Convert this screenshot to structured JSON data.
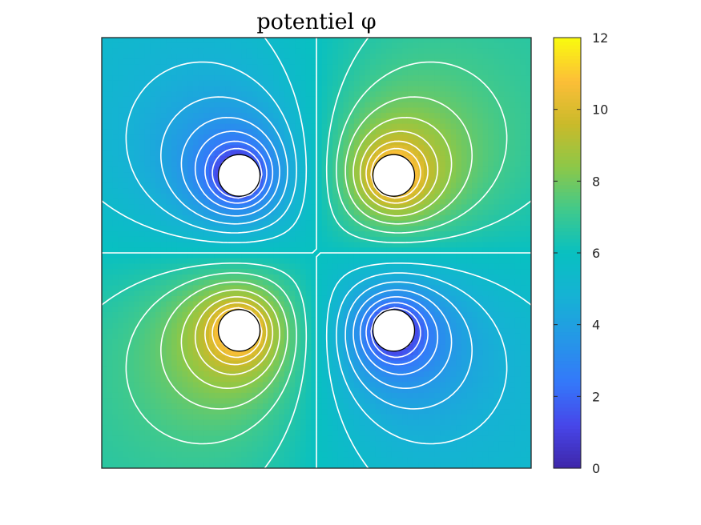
{
  "chart_data": {
    "type": "heatmap",
    "title": "potentiel φ",
    "xlabel": "",
    "ylabel": "",
    "colorbar": {
      "range": [
        0,
        12
      ],
      "ticks": [
        0,
        2,
        4,
        6,
        8,
        10,
        12
      ],
      "tick_labels": [
        "0",
        "2",
        "4",
        "6",
        "8",
        "10",
        "12"
      ],
      "colormap": "parula"
    },
    "domain": {
      "x": [
        -1,
        1
      ],
      "y": [
        -1,
        1
      ]
    },
    "background_value": 6,
    "electrodes": [
      {
        "x": -0.36,
        "y": 0.36,
        "value": 0
      },
      {
        "x": 0.36,
        "y": 0.36,
        "value": 12
      },
      {
        "x": -0.36,
        "y": -0.36,
        "value": 12
      },
      {
        "x": 0.36,
        "y": -0.36,
        "value": 0
      }
    ],
    "electrode_radius": 0.1,
    "contour_line_color": "#ffffff",
    "electrode_edge_color": "#000000",
    "grid": false,
    "axis_ticks_visible": false
  }
}
